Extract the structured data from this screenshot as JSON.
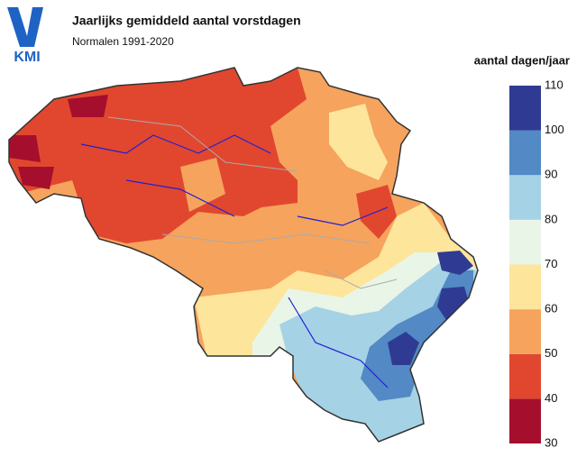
{
  "header": {
    "logo": "KMI",
    "title": "Jaarlijks gemiddeld aantal vorstdagen",
    "subtitle": "Normalen 1991-2020"
  },
  "legend": {
    "title": "aantal dagen/jaar",
    "ticks": [
      30,
      40,
      50,
      60,
      70,
      80,
      90,
      100,
      110
    ],
    "colors": [
      "#a50f2d",
      "#e1472f",
      "#f6a35d",
      "#fde59b",
      "#e9f5e7",
      "#a6d2e6",
      "#5389c4",
      "#2f3b93"
    ]
  }
}
